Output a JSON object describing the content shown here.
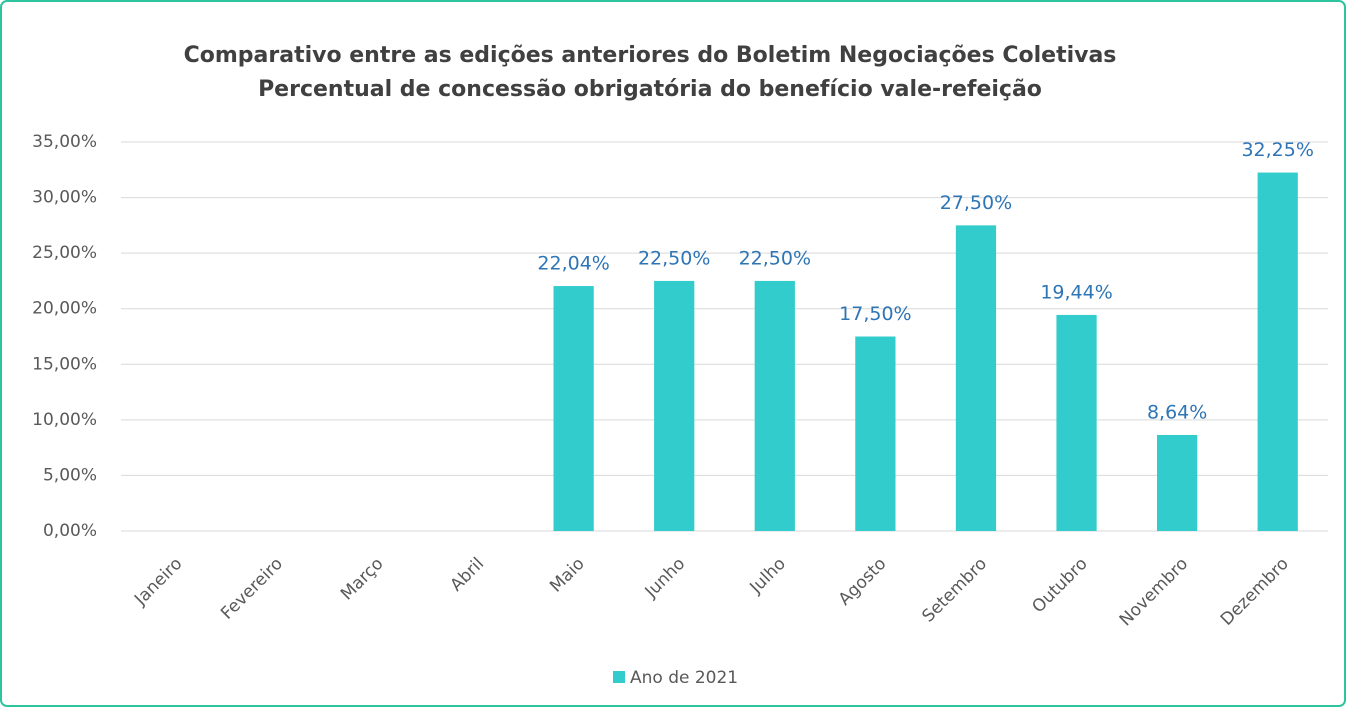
{
  "chart_data": {
    "type": "bar",
    "title": "Comparativo entre as edições anteriores do Boletim Negociações Coletivas",
    "subtitle": "Percentual de concessão obrigatória do benefício vale-refeição",
    "categories": [
      "Janeiro",
      "Fevereiro",
      "Março",
      "Abril",
      "Maio",
      "Junho",
      "Julho",
      "Agosto",
      "Setembro",
      "Outubro",
      "Novembro",
      "Dezembro"
    ],
    "series": [
      {
        "name": "Ano de 2021",
        "color": "#33cccc",
        "values": [
          null,
          null,
          null,
          null,
          22.04,
          22.5,
          22.5,
          17.5,
          27.5,
          19.44,
          8.64,
          32.25
        ],
        "value_labels": [
          null,
          null,
          null,
          null,
          "22,04%",
          "22,50%",
          "22,50%",
          "17,50%",
          "27,50%",
          "19,44%",
          "8,64%",
          "32,25%"
        ]
      }
    ],
    "ylim": [
      0,
      35
    ],
    "yticks": [
      {
        "value": 0,
        "label": "0,00%"
      },
      {
        "value": 5,
        "label": "5,00%"
      },
      {
        "value": 10,
        "label": "10,00%"
      },
      {
        "value": 15,
        "label": "15,00%"
      },
      {
        "value": 20,
        "label": "20,00%"
      },
      {
        "value": 25,
        "label": "25,00%"
      },
      {
        "value": 30,
        "label": "30,00%"
      },
      {
        "value": 35,
        "label": "35,00%"
      }
    ],
    "grid": true,
    "legend": "bottom"
  }
}
